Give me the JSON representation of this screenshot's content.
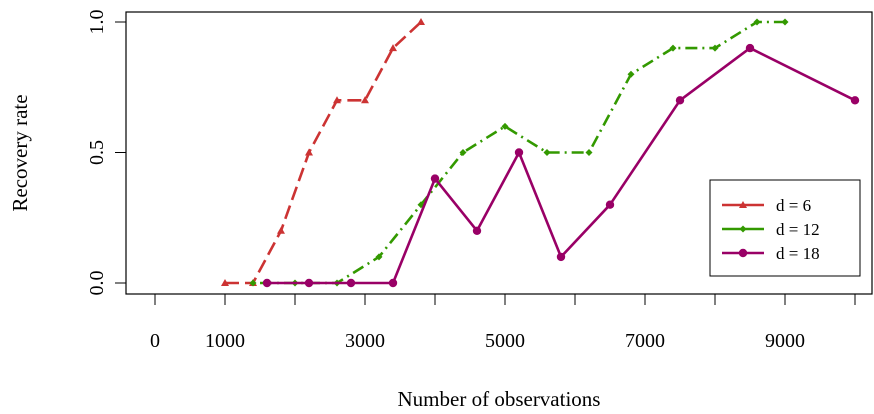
{
  "chart_data": {
    "type": "line",
    "xlabel": "Number of observations",
    "ylabel": "Recovery rate",
    "xlim": [
      -200,
      10000
    ],
    "ylim": [
      0.0,
      1.0
    ],
    "x_ticks": [
      0,
      1000,
      3000,
      5000,
      7000,
      9000
    ],
    "x_tick_labels": [
      "0",
      "1000",
      "3000",
      "5000",
      "7000",
      "9000"
    ],
    "x_minor_ticks": [
      2000,
      4000,
      6000,
      8000,
      10000
    ],
    "y_ticks": [
      0.0,
      0.5,
      1.0
    ],
    "y_tick_labels": [
      "0.0",
      "0.5",
      "1.0"
    ],
    "grid": false,
    "legend_position": "bottom-right",
    "series": [
      {
        "name": "d = 6",
        "color": "#cc3333",
        "line_style": "longdash",
        "marker": "triangle",
        "x": [
          1000,
          1400,
          1800,
          2200,
          2600,
          3000,
          3400,
          3800
        ],
        "y": [
          0.0,
          0.0,
          0.2,
          0.5,
          0.7,
          0.7,
          0.9,
          1.0
        ]
      },
      {
        "name": "d = 12",
        "color": "#339900",
        "line_style": "dotdash",
        "marker": "diamond",
        "x": [
          1400,
          2000,
          2600,
          3200,
          3800,
          4400,
          5000,
          5600,
          6200,
          6800,
          7400,
          8000,
          8600,
          9000
        ],
        "y": [
          0.0,
          0.0,
          0.0,
          0.1,
          0.3,
          0.5,
          0.6,
          0.5,
          0.5,
          0.8,
          0.9,
          0.9,
          1.0,
          1.0
        ]
      },
      {
        "name": "d = 18",
        "color": "#990066",
        "line_style": "solid",
        "marker": "circle",
        "x": [
          1600,
          2200,
          2800,
          3400,
          4000,
          4600,
          5200,
          5800,
          6500,
          7500,
          8500,
          10000
        ],
        "y": [
          0.0,
          0.0,
          0.0,
          0.0,
          0.4,
          0.2,
          0.5,
          0.1,
          0.3,
          0.7,
          0.9,
          0.7
        ]
      }
    ]
  }
}
